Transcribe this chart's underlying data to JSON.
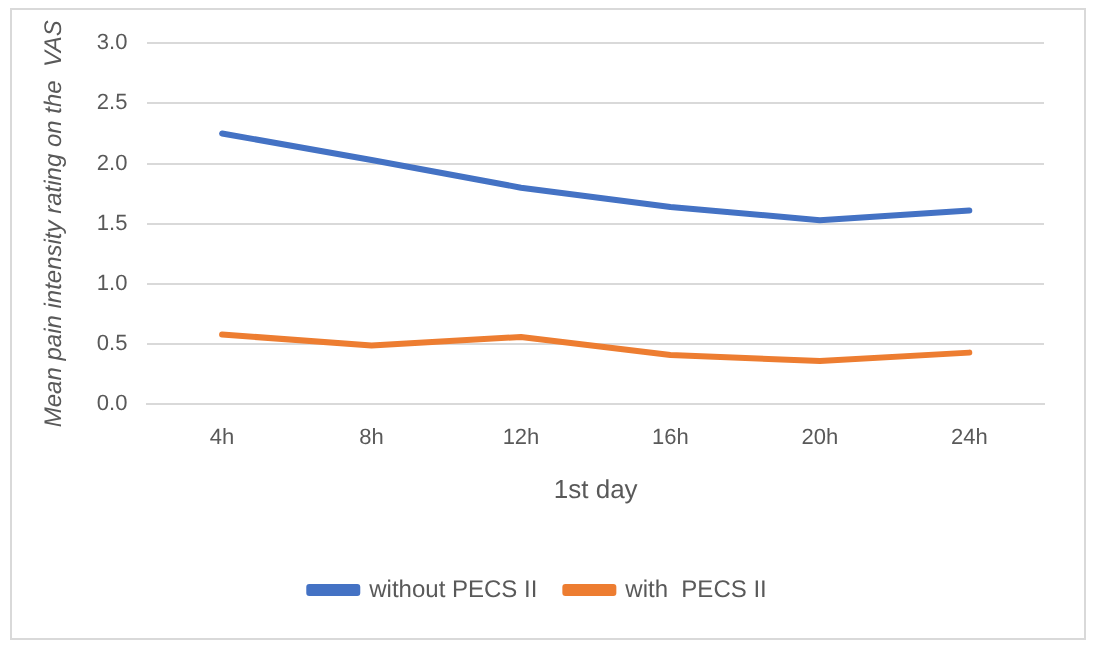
{
  "chart_data": {
    "type": "line",
    "xlabel": "1st day",
    "ylabel": "Mean pain intensity rating on the  VAS",
    "categories": [
      "4h",
      "8h",
      "12h",
      "16h",
      "20h",
      "24h"
    ],
    "series": [
      {
        "name": "without PECS II",
        "color": "#4472c4",
        "values": [
          2.25,
          2.03,
          1.8,
          1.64,
          1.53,
          1.61
        ]
      },
      {
        "name": "with  PECS II",
        "color": "#ed7d31",
        "values": [
          0.58,
          0.49,
          0.56,
          0.41,
          0.36,
          0.43
        ]
      }
    ],
    "ylim": [
      0,
      3
    ],
    "yticks": [
      {
        "value": 0,
        "label": "0.0"
      },
      {
        "value": 0.5,
        "label": "0.5"
      },
      {
        "value": 1,
        "label": "1.0"
      },
      {
        "value": 1.5,
        "label": "1.5"
      },
      {
        "value": 2,
        "label": "2.0"
      },
      {
        "value": 2.5,
        "label": "2.5"
      },
      {
        "value": 3,
        "label": "3.0"
      }
    ],
    "grid": "y",
    "legend": "bottom",
    "marker": "none",
    "line_style": "solid"
  }
}
